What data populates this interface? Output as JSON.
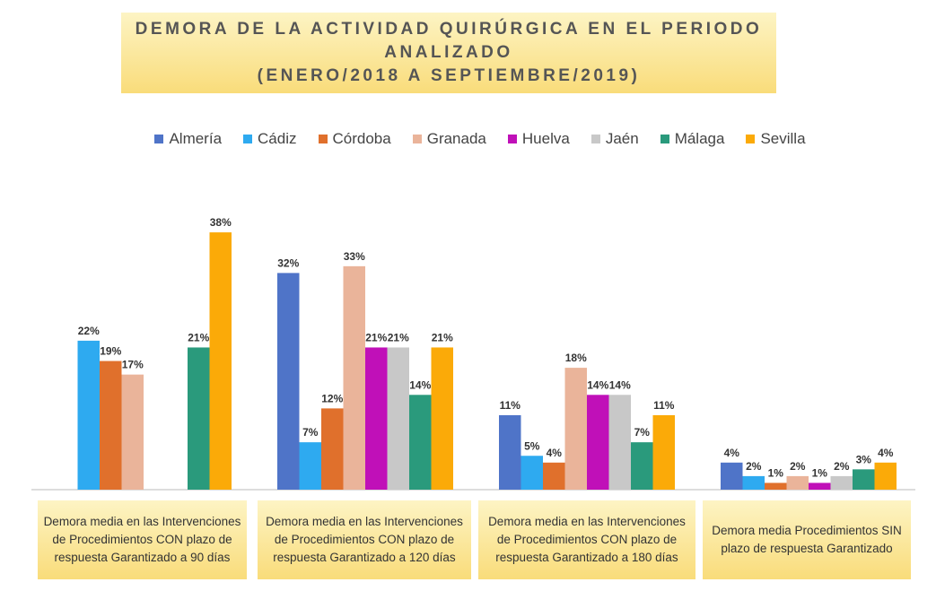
{
  "chart_data": {
    "type": "bar",
    "title": "DEMORA DE LA ACTIVIDAD QUIRÚRGICA EN EL PERIODO ANALIZADO",
    "subtitle": "(ENERO/2018 A SEPTIEMBRE/2019)",
    "categories": [
      "Demora media en las Intervenciones de Procedimientos CON plazo de respuesta Garantizado a 90 días",
      "Demora media en las Intervenciones de Procedimientos CON plazo de respuesta Garantizado a 120 días",
      "Demora media en las Intervenciones de Procedimientos CON plazo de respuesta Garantizado a 180 días",
      "Demora media Procedimientos SIN plazo de respuesta Garantizado"
    ],
    "series": [
      {
        "name": "Almería",
        "color": "#4f74c8",
        "values": [
          null,
          32,
          11,
          4
        ],
        "value_labels": [
          null,
          "32%",
          "11%",
          "4%"
        ]
      },
      {
        "name": "Cádiz",
        "color": "#2eaaf0",
        "values": [
          22,
          7,
          5,
          2
        ],
        "value_labels": [
          "22%",
          "7%",
          "5%",
          "2%"
        ]
      },
      {
        "name": "Córdoba",
        "color": "#e0702c",
        "values": [
          19,
          12,
          4,
          1
        ],
        "value_labels": [
          "19%",
          "12%",
          "4%",
          "1%"
        ]
      },
      {
        "name": "Granada",
        "color": "#eab49a",
        "values": [
          17,
          33,
          18,
          2
        ],
        "value_labels": [
          "17%",
          "33%",
          "18%",
          "2%"
        ]
      },
      {
        "name": "Huelva",
        "color": "#c010b8",
        "values": [
          null,
          21,
          14,
          1
        ],
        "value_labels": [
          null,
          "21%",
          "14%",
          "1%"
        ]
      },
      {
        "name": "Jaén",
        "color": "#c8c8c8",
        "values": [
          null,
          21,
          14,
          2
        ],
        "value_labels": [
          null,
          "21%",
          "14%",
          "2%"
        ]
      },
      {
        "name": "Málaga",
        "color": "#2a9a7c",
        "values": [
          21,
          14,
          7,
          3
        ],
        "value_labels": [
          "21%",
          "14%",
          "7%",
          "3%"
        ]
      },
      {
        "name": "Sevilla",
        "color": "#fbaa08",
        "values": [
          38,
          21,
          11,
          4
        ],
        "value_labels": [
          "38%",
          "21%",
          "11%",
          "4%"
        ]
      }
    ]
  }
}
